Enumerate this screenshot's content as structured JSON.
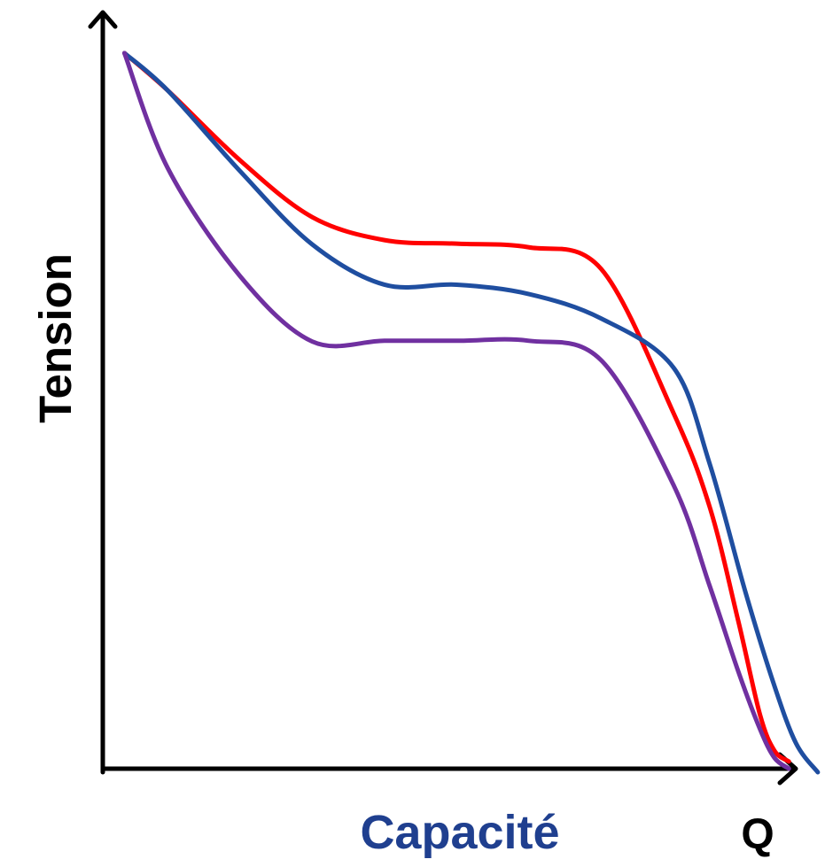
{
  "chart_data": {
    "type": "line",
    "title": "",
    "xlabel": "Capacité",
    "ylabel": "Tension",
    "x_end_label": "Q",
    "xlim": [
      0,
      100
    ],
    "ylim": [
      0,
      100
    ],
    "grid": false,
    "legend": "none",
    "colors": {
      "axis": "#000000",
      "xlabel": "#1f3f8f",
      "ylabel": "#000000",
      "x_end_label": "#000000"
    },
    "series": [
      {
        "color": "#ff0000",
        "x": [
          3,
          9,
          19,
          29,
          39,
          49,
          59,
          69,
          79,
          84,
          88,
          91,
          93,
          95
        ],
        "y": [
          100,
          94.8,
          85.1,
          77.2,
          74.0,
          73.5,
          73.0,
          70.0,
          50.0,
          37.0,
          21.0,
          8.0,
          3.0,
          1.5
        ]
      },
      {
        "color": "#1f4ea0",
        "x": [
          3,
          9,
          19,
          29,
          39,
          49,
          59,
          69,
          79,
          84,
          89,
          93,
          96,
          99
        ],
        "y": [
          100,
          94.8,
          83.6,
          73.4,
          67.8,
          67.8,
          66.5,
          63.1,
          56.3,
          43.0,
          25.0,
          12.0,
          4.0,
          0
        ]
      },
      {
        "color": "#7030a0",
        "x": [
          3,
          9,
          19,
          29,
          39,
          49,
          59,
          69,
          79,
          84,
          88,
          91,
          93,
          95
        ],
        "y": [
          100,
          84.0,
          69.0,
          59.9,
          60.0,
          60.0,
          60.0,
          57.3,
          40.0,
          26.0,
          14.0,
          6.0,
          2.0,
          0.5
        ]
      }
    ]
  }
}
